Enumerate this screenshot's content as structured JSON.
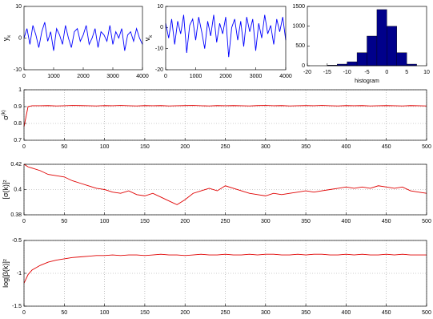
{
  "chart_data": [
    {
      "type": "line",
      "ylabel": "y",
      "ylabel_sub": "k",
      "color": "#0000ff",
      "xlim": [
        0,
        4000
      ],
      "ylim": [
        -10,
        10
      ],
      "xticks": [
        0,
        1000,
        2000,
        3000,
        4000
      ],
      "yticks": [
        -10,
        0,
        10
      ],
      "grid": false,
      "x": [
        0,
        100,
        200,
        300,
        400,
        500,
        600,
        700,
        800,
        900,
        1000,
        1100,
        1200,
        1300,
        1400,
        1500,
        1600,
        1700,
        1800,
        1900,
        2000,
        2100,
        2200,
        2300,
        2400,
        2500,
        2600,
        2700,
        2800,
        2900,
        3000,
        3100,
        3200,
        3300,
        3400,
        3500,
        3600,
        3700,
        3800,
        3900,
        4000
      ],
      "values": [
        0,
        3,
        -2,
        4,
        1,
        -3,
        2,
        5,
        -1,
        2,
        -4,
        3,
        1,
        -2,
        4,
        0,
        -3,
        2,
        3,
        -1,
        1,
        4,
        -2,
        0,
        3,
        -3,
        2,
        1,
        -1,
        4,
        -2,
        2,
        0,
        3,
        -4,
        1,
        2,
        -1,
        3,
        0,
        -2
      ]
    },
    {
      "type": "line",
      "ylabel": "v",
      "ylabel_sub": "k",
      "color": "#0000ff",
      "xlim": [
        0,
        4000
      ],
      "ylim": [
        -20,
        10
      ],
      "xticks": [
        0,
        1000,
        2000,
        3000,
        4000
      ],
      "yticks": [
        -20,
        -10,
        0,
        10
      ],
      "grid": false,
      "x": [
        0,
        100,
        200,
        300,
        400,
        500,
        600,
        700,
        800,
        900,
        1000,
        1100,
        1200,
        1300,
        1400,
        1500,
        1600,
        1700,
        1800,
        1900,
        2000,
        2100,
        2200,
        2300,
        2400,
        2500,
        2600,
        2700,
        2800,
        2900,
        3000,
        3100,
        3200,
        3300,
        3400,
        3500,
        3600,
        3700,
        3800,
        3900,
        4000
      ],
      "values": [
        2,
        -5,
        4,
        -8,
        3,
        -3,
        6,
        -12,
        1,
        4,
        -6,
        5,
        -2,
        -10,
        3,
        -4,
        6,
        -7,
        2,
        -3,
        5,
        -14,
        0,
        4,
        -6,
        3,
        -9,
        5,
        -2,
        4,
        -11,
        2,
        -5,
        6,
        -3,
        1,
        -8,
        4,
        -2,
        5,
        -6
      ]
    },
    {
      "type": "histogram",
      "xlabel": "histogram",
      "color": "#00008b",
      "xlim": [
        -20,
        10
      ],
      "ylim": [
        0,
        1500
      ],
      "xticks": [
        -20,
        -15,
        -10,
        -5,
        0,
        5,
        10
      ],
      "yticks": [
        0,
        500,
        1000,
        1500
      ],
      "grid": false,
      "bins": [
        -15,
        -12.5,
        -10,
        -7.5,
        -5,
        -2.5,
        0,
        2.5,
        5,
        7.5
      ],
      "counts": [
        15,
        40,
        100,
        330,
        750,
        1420,
        1000,
        330,
        40
      ]
    },
    {
      "type": "line",
      "ylabel": "σ",
      "ylabel_sup": "(k)",
      "color": "#e00000",
      "xlim": [
        0,
        500
      ],
      "ylim": [
        0.7,
        1
      ],
      "xticks": [
        0,
        50,
        100,
        150,
        200,
        250,
        300,
        350,
        400,
        450,
        500
      ],
      "yticks": [
        0.7,
        0.8,
        0.9,
        1
      ],
      "grid": true,
      "x": [
        0,
        5,
        10,
        20,
        30,
        40,
        50,
        60,
        70,
        80,
        90,
        100,
        110,
        120,
        130,
        140,
        150,
        160,
        170,
        180,
        190,
        200,
        210,
        220,
        230,
        240,
        250,
        260,
        270,
        280,
        290,
        300,
        310,
        320,
        330,
        340,
        350,
        360,
        370,
        380,
        390,
        400,
        410,
        420,
        430,
        440,
        450,
        460,
        470,
        480,
        490,
        500
      ],
      "values": [
        0.78,
        0.9,
        0.905,
        0.905,
        0.906,
        0.904,
        0.905,
        0.907,
        0.906,
        0.905,
        0.904,
        0.906,
        0.905,
        0.907,
        0.905,
        0.904,
        0.906,
        0.905,
        0.906,
        0.904,
        0.905,
        0.906,
        0.907,
        0.905,
        0.904,
        0.906,
        0.905,
        0.906,
        0.905,
        0.904,
        0.906,
        0.907,
        0.905,
        0.906,
        0.904,
        0.905,
        0.906,
        0.905,
        0.907,
        0.905,
        0.904,
        0.906,
        0.905,
        0.906,
        0.904,
        0.905,
        0.906,
        0.905,
        0.904,
        0.906,
        0.905,
        0.904
      ]
    },
    {
      "type": "line",
      "ylabel": "[σ(k)]²",
      "color": "#e00000",
      "xlim": [
        0,
        500
      ],
      "ylim": [
        0.38,
        0.42
      ],
      "xticks": [
        0,
        50,
        100,
        150,
        200,
        250,
        300,
        350,
        400,
        450,
        500
      ],
      "yticks": [
        0.38,
        0.4,
        0.42
      ],
      "grid": true,
      "x": [
        0,
        5,
        10,
        20,
        30,
        40,
        50,
        60,
        70,
        80,
        90,
        100,
        110,
        120,
        130,
        140,
        150,
        160,
        170,
        180,
        190,
        200,
        210,
        220,
        230,
        240,
        250,
        260,
        270,
        280,
        290,
        300,
        310,
        320,
        330,
        340,
        350,
        360,
        370,
        380,
        390,
        400,
        410,
        420,
        430,
        440,
        450,
        460,
        470,
        480,
        490,
        500
      ],
      "values": [
        0.42,
        0.418,
        0.417,
        0.415,
        0.412,
        0.411,
        0.41,
        0.407,
        0.405,
        0.403,
        0.401,
        0.4,
        0.398,
        0.397,
        0.399,
        0.396,
        0.395,
        0.397,
        0.394,
        0.391,
        0.388,
        0.392,
        0.397,
        0.399,
        0.401,
        0.399,
        0.403,
        0.401,
        0.399,
        0.397,
        0.396,
        0.395,
        0.397,
        0.396,
        0.397,
        0.398,
        0.399,
        0.398,
        0.399,
        0.4,
        0.401,
        0.402,
        0.401,
        0.402,
        0.401,
        0.403,
        0.402,
        0.401,
        0.402,
        0.399,
        0.398,
        0.397
      ]
    },
    {
      "type": "line",
      "ylabel": "log[β(k)]²",
      "color": "#e00000",
      "xlim": [
        0,
        500
      ],
      "ylim": [
        -1.5,
        -0.5
      ],
      "xticks": [
        0,
        50,
        100,
        150,
        200,
        250,
        300,
        350,
        400,
        450,
        500
      ],
      "yticks": [
        -1.5,
        -1,
        -0.5
      ],
      "grid": true,
      "x": [
        0,
        5,
        10,
        20,
        30,
        40,
        50,
        60,
        70,
        80,
        90,
        100,
        110,
        120,
        130,
        140,
        150,
        160,
        170,
        180,
        190,
        200,
        210,
        220,
        230,
        240,
        250,
        260,
        270,
        280,
        290,
        300,
        310,
        320,
        330,
        340,
        350,
        360,
        370,
        380,
        390,
        400,
        410,
        420,
        430,
        440,
        450,
        460,
        470,
        480,
        490,
        500
      ],
      "values": [
        -1.15,
        -1.02,
        -0.95,
        -0.88,
        -0.83,
        -0.8,
        -0.78,
        -0.76,
        -0.75,
        -0.74,
        -0.73,
        -0.73,
        -0.72,
        -0.73,
        -0.72,
        -0.72,
        -0.73,
        -0.72,
        -0.71,
        -0.72,
        -0.72,
        -0.73,
        -0.72,
        -0.71,
        -0.72,
        -0.72,
        -0.71,
        -0.72,
        -0.72,
        -0.71,
        -0.72,
        -0.71,
        -0.71,
        -0.72,
        -0.72,
        -0.71,
        -0.72,
        -0.71,
        -0.71,
        -0.72,
        -0.72,
        -0.71,
        -0.72,
        -0.71,
        -0.72,
        -0.72,
        -0.71,
        -0.72,
        -0.71,
        -0.72,
        -0.72,
        -0.72
      ]
    }
  ]
}
